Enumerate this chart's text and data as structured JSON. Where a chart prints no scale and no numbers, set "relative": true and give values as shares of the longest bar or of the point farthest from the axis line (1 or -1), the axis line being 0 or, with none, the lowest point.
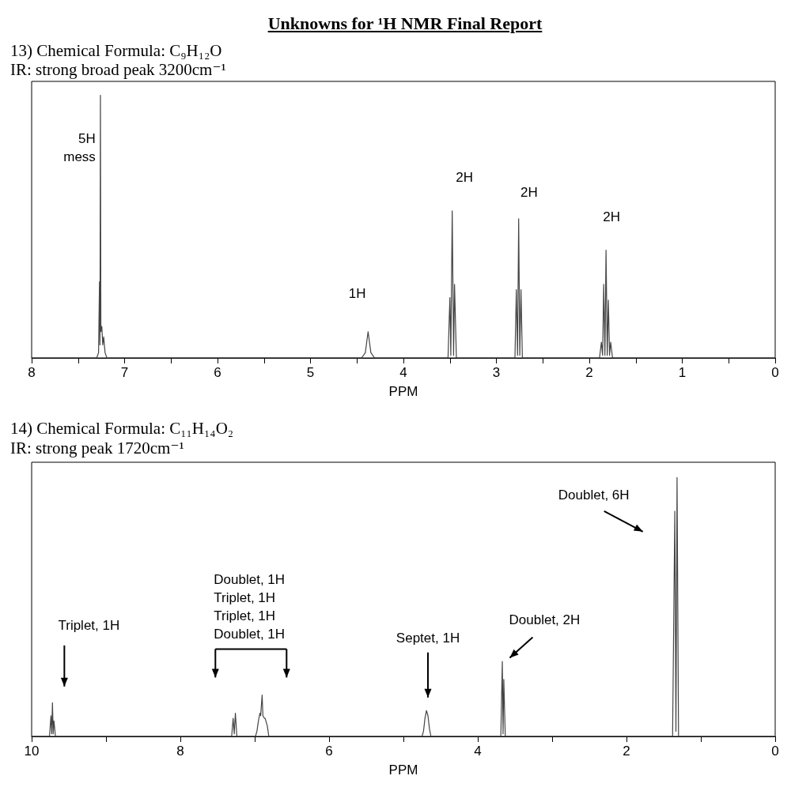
{
  "chart_data": [
    {
      "type": "line",
      "title": "Unknowns for ¹H NMR Final Report",
      "subtitle": "13) Chemical Formula: C₉H₁₂O",
      "xlabel": "PPM",
      "relative": true,
      "xlim": [
        8,
        0
      ],
      "xticks": [
        8,
        {
          "value": 7.5,
          "label": null
        },
        7,
        {
          "value": 6.5,
          "label": null
        },
        6,
        {
          "value": 5.5,
          "label": null
        },
        5,
        {
          "value": 4.5,
          "label": null
        },
        4,
        {
          "value": 3.5,
          "label": null
        },
        3,
        {
          "value": 2.5,
          "label": null
        },
        2,
        {
          "value": 1.5,
          "label": null
        },
        1,
        {
          "value": 0.5,
          "label": null
        },
        0
      ],
      "series": [
        {
          "color": "#444444",
          "x": [
            8.0,
            7.3,
            7.28,
            7.27,
            7.265,
            7.26,
            7.255,
            7.245,
            7.235,
            7.225,
            7.21,
            7.19,
            4.45,
            4.41,
            4.38,
            4.35,
            4.31,
            3.52,
            3.5,
            3.49,
            3.475,
            3.46,
            3.45,
            3.43,
            2.8,
            2.785,
            2.772,
            2.76,
            2.748,
            2.735,
            2.72,
            1.89,
            1.87,
            1.857,
            1.845,
            1.832,
            1.82,
            1.807,
            1.795,
            1.782,
            1.77,
            1.75,
            0
          ],
          "values": [
            0,
            0,
            0.02,
            0.29,
            0.05,
            1.0,
            0.1,
            0.12,
            0.05,
            0.08,
            0.02,
            0,
            0,
            0.02,
            0.1,
            0.02,
            0,
            0,
            0.23,
            0.01,
            0.56,
            0.01,
            0.28,
            0,
            0,
            0.26,
            0.01,
            0.53,
            0.01,
            0.26,
            0,
            0,
            0.06,
            0.01,
            0.28,
            0.01,
            0.41,
            0.01,
            0.22,
            0.01,
            0.06,
            0,
            0
          ]
        }
      ],
      "annotations": [
        "IR: strong broad peak 3200cm⁻¹",
        "5H\nmess",
        "1H",
        "2H",
        "2H",
        "2H"
      ]
    },
    {
      "type": "line",
      "title": "14) Chemical Formula: C₁₁H₁₄O₂",
      "subtitle": "IR: strong peak 1720cm⁻¹",
      "xlabel": "PPM",
      "relative": true,
      "xlim": [
        10,
        0
      ],
      "xticks": [
        10,
        {
          "value": 9,
          "label": null
        },
        8,
        {
          "value": 7,
          "label": null
        },
        6,
        {
          "value": 5,
          "label": null
        },
        4,
        {
          "value": 3,
          "label": null
        },
        2,
        {
          "value": 1,
          "label": null
        },
        0
      ],
      "series": [
        {
          "color": "#444444",
          "x": [
            10.0,
            9.76,
            9.74,
            9.73,
            9.72,
            9.71,
            9.7,
            9.68,
            7.31,
            7.29,
            7.275,
            7.26,
            7.24,
            6.99,
            6.97,
            6.95,
            6.93,
            6.92,
            6.9,
            6.89,
            6.87,
            6.86,
            6.85,
            6.83,
            6.81,
            4.75,
            4.73,
            4.71,
            4.69,
            4.67,
            4.65,
            4.63,
            3.69,
            3.67,
            3.66,
            3.65,
            3.63,
            1.38,
            1.35,
            1.335,
            1.32,
            1.3,
            0
          ],
          "values": [
            0,
            0,
            0.08,
            0.01,
            0.13,
            0.01,
            0.06,
            0,
            0,
            0.07,
            0.01,
            0.09,
            0,
            0,
            0.02,
            0.06,
            0.09,
            0.08,
            0.16,
            0.08,
            0.07,
            0.07,
            0.06,
            0.04,
            0,
            0,
            0.02,
            0.07,
            0.1,
            0.08,
            0.03,
            0,
            0,
            0.29,
            0.01,
            0.22,
            0,
            0,
            0.87,
            0.02,
            1.0,
            0,
            0
          ]
        }
      ],
      "annotations": [
        "Triplet, 1H",
        "Doublet, 1H\nTriplet, 1H\nTriplet, 1H\nDoublet, 1H",
        "Septet, 1H",
        "Doublet, 2H",
        "Doublet, 6H"
      ]
    }
  ]
}
